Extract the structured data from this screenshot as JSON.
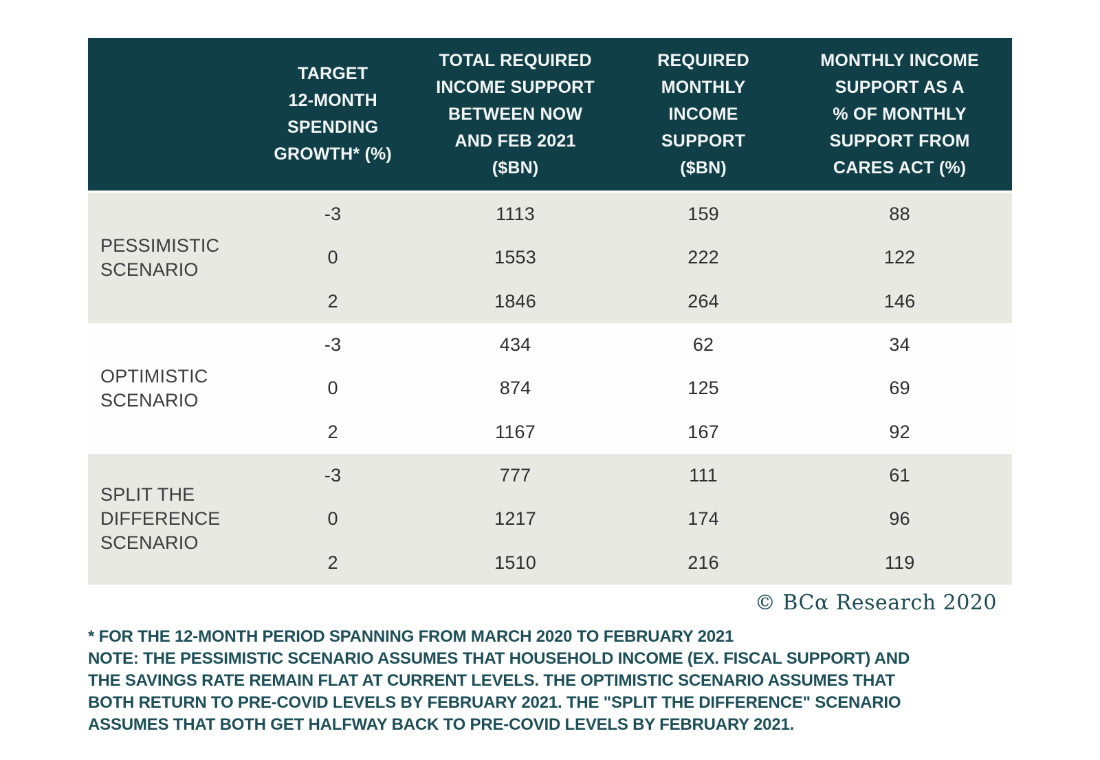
{
  "colors": {
    "header_bg": "#103f47",
    "band_gray": "#e9e9e4",
    "band_white": "#fefefe",
    "data_text": "#2d2d2d",
    "label_text": "#3b3b3b",
    "note_text": "#1d4f58"
  },
  "chart_data": {
    "type": "table",
    "columns": [
      "",
      "TARGET 12-MONTH SPENDING GROWTH* (%)",
      "TOTAL REQUIRED INCOME SUPPORT BETWEEN NOW AND FEB 2021 ($BN)",
      "REQUIRED MONTHLY INCOME SUPPORT ($BN)",
      "MONTHLY INCOME SUPPORT AS A % OF MONTHLY SUPPORT FROM CARES ACT (%)"
    ],
    "groups": [
      {
        "scenario": "PESSIMISTIC SCENARIO",
        "rows": [
          [
            "-3",
            "1113",
            "159",
            "88"
          ],
          [
            "0",
            "1553",
            "222",
            "122"
          ],
          [
            "2",
            "1846",
            "264",
            "146"
          ]
        ]
      },
      {
        "scenario": "OPTIMISTIC SCENARIO",
        "rows": [
          [
            "-3",
            "434",
            "62",
            "34"
          ],
          [
            "0",
            "874",
            "125",
            "69"
          ],
          [
            "2",
            "1167",
            "167",
            "92"
          ]
        ]
      },
      {
        "scenario": "SPLIT THE DIFFERENCE SCENARIO",
        "rows": [
          [
            "-3",
            "777",
            "111",
            "61"
          ],
          [
            "0",
            "1217",
            "174",
            "96"
          ],
          [
            "2",
            "1510",
            "216",
            "119"
          ]
        ]
      }
    ]
  },
  "display": {
    "headers": [
      "",
      "TARGET\n12-MONTH\nSPENDING\nGROWTH* (%)",
      "TOTAL REQUIRED\nINCOME SUPPORT\nBETWEEN NOW\nAND FEB 2021\n($BN)",
      "REQUIRED\nMONTHLY INCOME\nSUPPORT\n($BN)",
      "MONTHLY INCOME\nSUPPORT AS A\n% OF MONTHLY\nSUPPORT FROM\nCARES ACT (%)"
    ]
  },
  "copyright": "© BCα Research 2020",
  "footnotes": [
    "* FOR THE 12-MONTH PERIOD SPANNING FROM MARCH 2020 TO FEBRUARY 2021",
    "NOTE: THE PESSIMISTIC SCENARIO ASSUMES THAT HOUSEHOLD INCOME (EX. FISCAL SUPPORT) AND",
    "THE SAVINGS RATE REMAIN FLAT AT CURRENT LEVELS. THE OPTIMISTIC SCENARIO ASSUMES THAT",
    "BOTH RETURN TO PRE-COVID LEVELS BY FEBRUARY 2021. THE \"SPLIT THE DIFFERENCE\" SCENARIO",
    "ASSUMES THAT BOTH GET HALFWAY BACK TO PRE-COVID LEVELS BY FEBRUARY 2021."
  ]
}
